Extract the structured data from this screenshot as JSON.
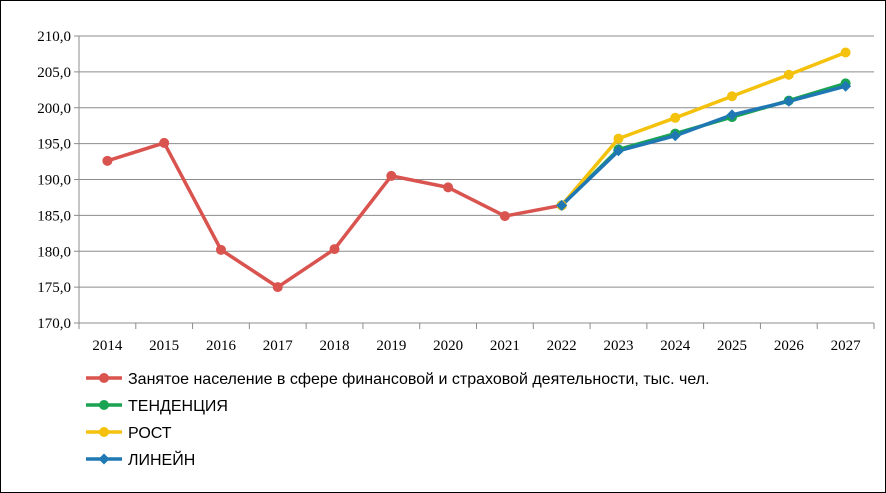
{
  "chart_data": {
    "type": "line",
    "title": "",
    "xlabel": "",
    "ylabel": "",
    "ylim": [
      170,
      210
    ],
    "yticks": [
      "170,0",
      "175,0",
      "180,0",
      "185,0",
      "190,0",
      "195,0",
      "200,0",
      "205,0",
      "210,0"
    ],
    "categories": [
      "2014",
      "2015",
      "2016",
      "2017",
      "2018",
      "2019",
      "2020",
      "2021",
      "2022",
      "2023",
      "2024",
      "2025",
      "2026",
      "2027"
    ],
    "grid": "horizontal",
    "legend_placement": "bottom",
    "series": [
      {
        "name": "Занятое население в сфере финансовой и страховой деятельности, тыс. чел.",
        "color": "#d9534f",
        "marker": "circle",
        "values": [
          192.6,
          195.1,
          180.2,
          175.0,
          180.3,
          190.5,
          188.9,
          184.9,
          186.4,
          null,
          null,
          null,
          null,
          null
        ]
      },
      {
        "name": "ТЕНДЕНЦИЯ",
        "color": "#19a352",
        "marker": "circle",
        "values": [
          null,
          null,
          null,
          null,
          null,
          null,
          null,
          null,
          186.4,
          194.2,
          196.4,
          198.7,
          201.0,
          203.4
        ]
      },
      {
        "name": "РОСТ",
        "color": "#f4c20d",
        "marker": "circle",
        "values": [
          null,
          null,
          null,
          null,
          null,
          null,
          null,
          null,
          186.4,
          195.7,
          198.6,
          201.6,
          204.6,
          207.7
        ]
      },
      {
        "name": "ЛИНЕЙН",
        "color": "#1f77b4",
        "marker": "diamond",
        "values": [
          null,
          null,
          null,
          null,
          null,
          null,
          null,
          null,
          186.4,
          194.0,
          196.1,
          199.0,
          200.9,
          203.0
        ]
      }
    ]
  }
}
